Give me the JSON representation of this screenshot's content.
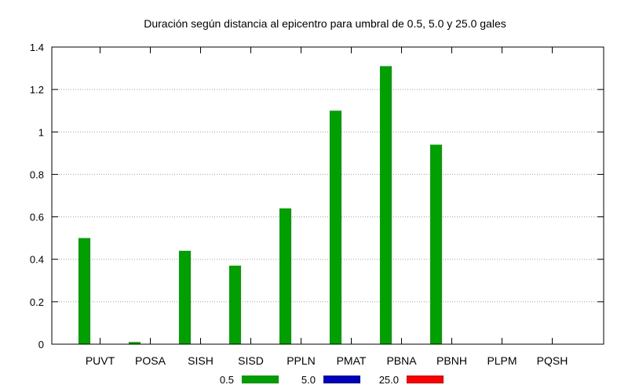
{
  "chart_data": {
    "type": "bar",
    "title": "Duración según distancia al epicentro para umbral de 0.5, 5.0 y 25.0 gales",
    "xlabel": "",
    "ylabel": "",
    "categories": [
      "PUVT",
      "POSA",
      "SISH",
      "SISD",
      "PPLN",
      "PMAT",
      "PBNA",
      "PBNH",
      "PLPM",
      "PQSH"
    ],
    "series": [
      {
        "name": "0.5",
        "color": "#00a000",
        "values": [
          0.5,
          0.01,
          0.44,
          0.37,
          0.64,
          1.1,
          1.31,
          0.94,
          0,
          0
        ]
      },
      {
        "name": "5.0",
        "color": "#0000c0",
        "values": [
          0,
          0,
          0,
          0,
          0,
          0,
          0,
          0,
          0,
          0
        ]
      },
      {
        "name": "25.0",
        "color": "#ff0000",
        "values": [
          0,
          0,
          0,
          0,
          0,
          0,
          0,
          0,
          0,
          0
        ]
      }
    ],
    "ylim": [
      0,
      1.4
    ],
    "yticks": [
      "0",
      "0.2",
      "0.4",
      "0.6",
      "0.8",
      "1",
      "1.2",
      "1.4"
    ],
    "grid": true,
    "legend_position": "bottom"
  }
}
